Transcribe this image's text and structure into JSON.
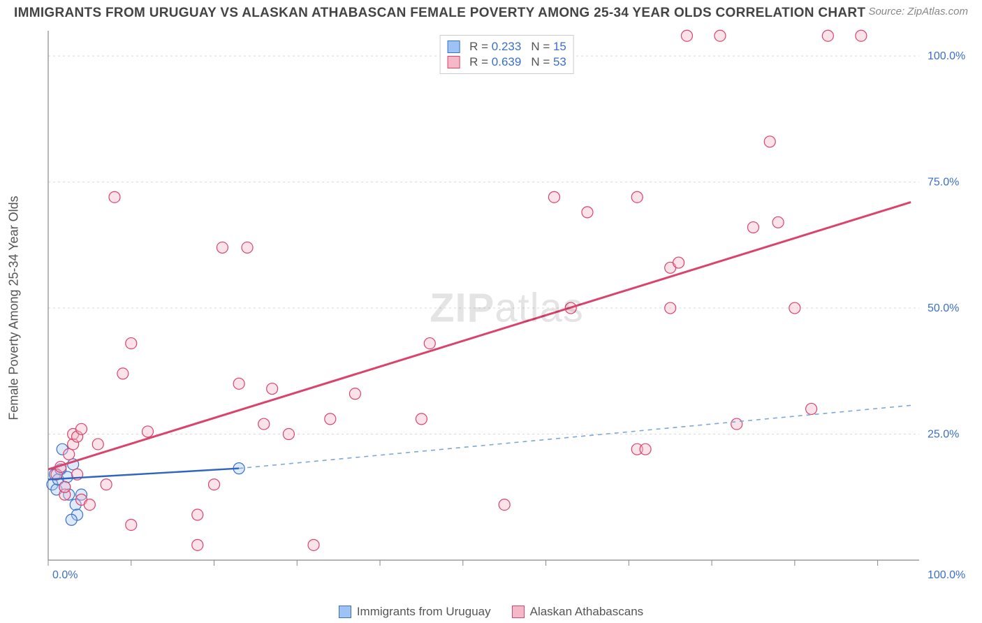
{
  "header": {
    "title": "IMMIGRANTS FROM URUGUAY VS ALASKAN ATHABASCAN FEMALE POVERTY AMONG 25-34 YEAR OLDS CORRELATION CHART",
    "source": "Source: ZipAtlas.com"
  },
  "watermark": {
    "bold": "ZIP",
    "light": "atlas"
  },
  "chart": {
    "type": "scatter",
    "ylabel": "Female Poverty Among 25-34 Year Olds",
    "xlim": [
      0,
      105
    ],
    "ylim": [
      0,
      105
    ],
    "xtick_labels": {
      "0": "0.0%",
      "100": "100.0%"
    },
    "ytick_labels": {
      "25": "25.0%",
      "50": "50.0%",
      "75": "75.0%",
      "100": "100.0%"
    },
    "grid_x_positions": [
      0,
      10,
      20,
      30,
      40,
      50,
      60,
      70,
      80,
      90,
      100
    ],
    "grid_y_positions": [
      25,
      50,
      75,
      100
    ],
    "grid_color": "#d9d9d9",
    "axis_color": "#888888",
    "background_color": "#ffffff",
    "tick_label_color": "#3b6fc9",
    "marker_radius": 8,
    "marker_stroke_width": 1.2,
    "series": [
      {
        "name": "Immigrants from Uruguay",
        "fill": "#9dc3f5",
        "fill_opacity": 0.35,
        "stroke": "#3b6fc9",
        "r_value": "0.233",
        "n_value": "15",
        "trend": {
          "x1": 0,
          "y1": 16,
          "x2": 23,
          "y2": 18.2,
          "ext_x2": 104,
          "ext_y2": 30.7,
          "solid_color": "#2f64c0",
          "solid_width": 2.4,
          "dash_color": "#7fa6d9",
          "dash_width": 1.6,
          "dash": "6,6"
        },
        "points": [
          [
            0.5,
            15
          ],
          [
            0.8,
            17
          ],
          [
            1.0,
            14
          ],
          [
            1.2,
            16
          ],
          [
            1.5,
            18
          ],
          [
            1.7,
            22
          ],
          [
            2.0,
            14.5
          ],
          [
            2.3,
            16.5
          ],
          [
            2.5,
            13
          ],
          [
            3.0,
            19
          ],
          [
            3.3,
            11
          ],
          [
            3.5,
            9
          ],
          [
            4.0,
            13
          ],
          [
            2.8,
            8
          ],
          [
            23,
            18.2
          ]
        ]
      },
      {
        "name": "Alaskan Athabascans",
        "fill": "#f5b8c9",
        "fill_opacity": 0.4,
        "stroke": "#d9436c",
        "r_value": "0.639",
        "n_value": "53",
        "trend": {
          "x1": 0,
          "y1": 18,
          "x2": 104,
          "y2": 71,
          "solid_color": "#d9436c",
          "solid_width": 3
        },
        "points": [
          [
            1,
            17
          ],
          [
            1.5,
            18.5
          ],
          [
            2,
            13
          ],
          [
            2,
            14.5
          ],
          [
            2.5,
            21
          ],
          [
            3,
            23
          ],
          [
            3,
            25
          ],
          [
            3.5,
            17
          ],
          [
            3.5,
            24.5
          ],
          [
            4,
            26
          ],
          [
            4,
            12
          ],
          [
            5,
            11
          ],
          [
            6,
            23
          ],
          [
            7,
            15
          ],
          [
            8,
            72
          ],
          [
            9,
            37
          ],
          [
            10,
            43
          ],
          [
            10,
            7
          ],
          [
            12,
            25.5
          ],
          [
            18,
            9
          ],
          [
            18,
            3
          ],
          [
            20,
            15
          ],
          [
            21,
            62
          ],
          [
            23,
            35
          ],
          [
            24,
            62
          ],
          [
            26,
            27
          ],
          [
            27,
            34
          ],
          [
            29,
            25
          ],
          [
            32,
            3
          ],
          [
            34,
            28
          ],
          [
            37,
            33
          ],
          [
            45,
            28
          ],
          [
            46,
            43
          ],
          [
            55,
            11
          ],
          [
            61,
            72
          ],
          [
            63,
            50
          ],
          [
            65,
            69
          ],
          [
            71,
            72
          ],
          [
            71,
            22
          ],
          [
            72,
            22
          ],
          [
            75,
            58
          ],
          [
            75,
            50
          ],
          [
            76,
            59
          ],
          [
            77,
            104
          ],
          [
            81,
            104
          ],
          [
            83,
            27
          ],
          [
            85,
            66
          ],
          [
            87,
            83
          ],
          [
            88,
            67
          ],
          [
            90,
            50
          ],
          [
            92,
            30
          ],
          [
            94,
            104
          ],
          [
            98,
            104
          ]
        ]
      }
    ],
    "legend_top_labels": {
      "r": "R =",
      "n": "N ="
    },
    "legend_bottom": [
      {
        "label": "Immigrants from Uruguay",
        "fill": "#9dc3f5",
        "stroke": "#3b6fc9"
      },
      {
        "label": "Alaskan Athabascans",
        "fill": "#f5b8c9",
        "stroke": "#d9436c"
      }
    ]
  }
}
